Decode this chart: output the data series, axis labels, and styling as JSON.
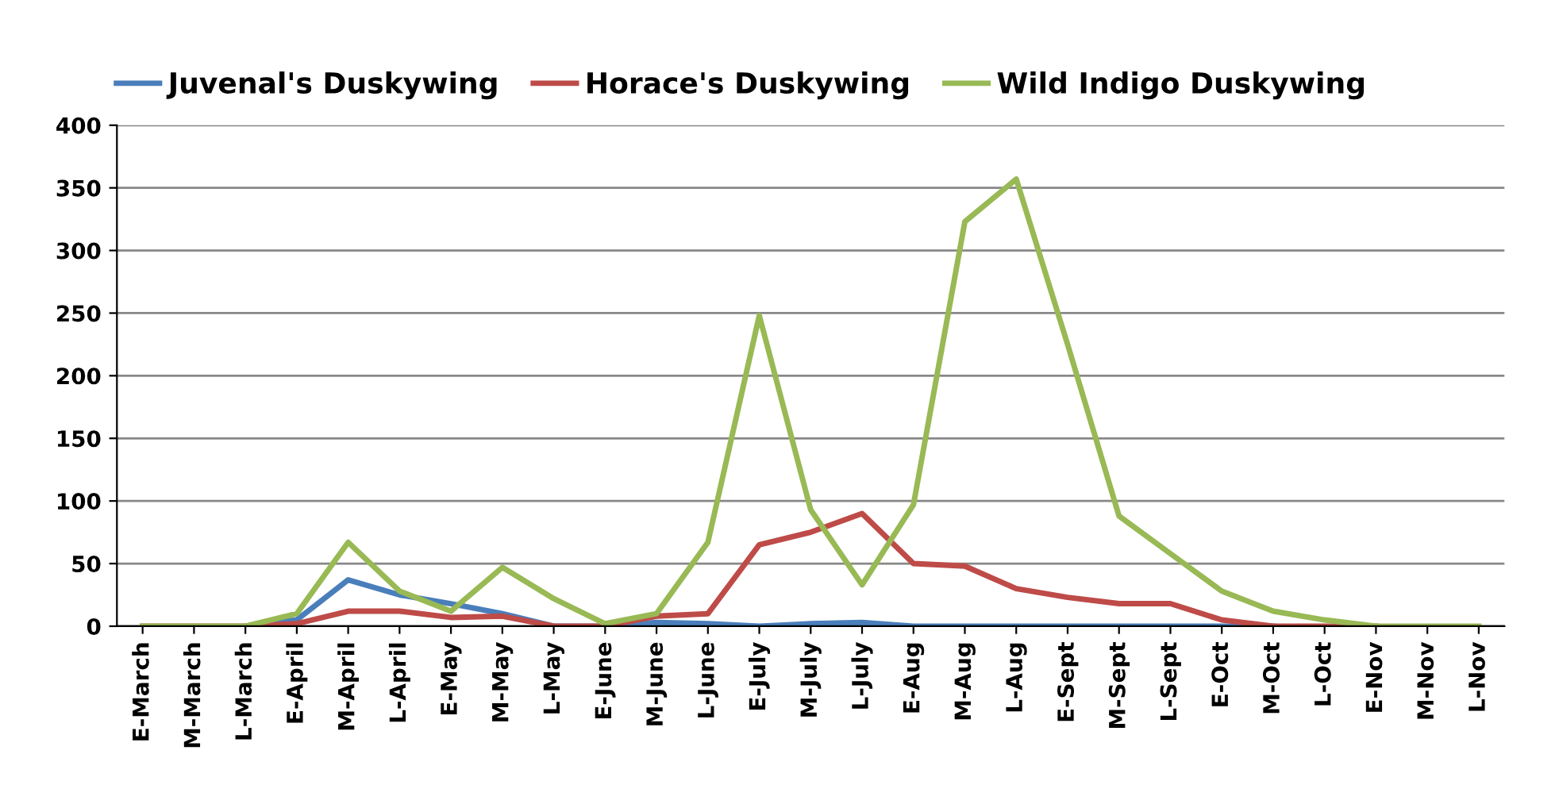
{
  "chart_data": {
    "type": "line",
    "categories": [
      "E-March",
      "M-March",
      "L-March",
      "E-April",
      "M-April",
      "L-April",
      "E-May",
      "M-May",
      "L-May",
      "E-June",
      "M-June",
      "L-June",
      "E-July",
      "M-July",
      "L-July",
      "E-Aug",
      "M-Aug",
      "L-Aug",
      "E-Sept",
      "M-Sept",
      "L-Sept",
      "E-Oct",
      "M-Oct",
      "L-Oct",
      "E-Nov",
      "M-Nov",
      "L-Nov"
    ],
    "series": [
      {
        "name": "Juvenal's Duskywing",
        "color": "#4a7ebb",
        "values": [
          null,
          null,
          0,
          5,
          37,
          25,
          18,
          10,
          0,
          0,
          3,
          2,
          0,
          2,
          3,
          0,
          0,
          0,
          0,
          0,
          0,
          0,
          0,
          null,
          null,
          null,
          null
        ]
      },
      {
        "name": "Horace's Duskywing",
        "color": "#be4b48",
        "values": [
          0,
          0,
          0,
          2,
          12,
          12,
          7,
          8,
          0,
          0,
          8,
          10,
          65,
          75,
          90,
          50,
          48,
          30,
          23,
          18,
          18,
          5,
          0,
          0,
          0,
          null,
          null
        ]
      },
      {
        "name": "Wild Indigo Duskywing",
        "color": "#98b954",
        "values": [
          0,
          0,
          0,
          10,
          67,
          28,
          12,
          47,
          22,
          2,
          10,
          67,
          248,
          93,
          33,
          97,
          323,
          357,
          225,
          88,
          58,
          28,
          12,
          5,
          0,
          0,
          0
        ]
      }
    ],
    "ylim": [
      0,
      400
    ],
    "yticks": [
      0,
      50,
      100,
      150,
      200,
      250,
      300,
      350,
      400
    ],
    "grid": "y",
    "legend": "top",
    "marker": "none",
    "line_style": "solid"
  }
}
